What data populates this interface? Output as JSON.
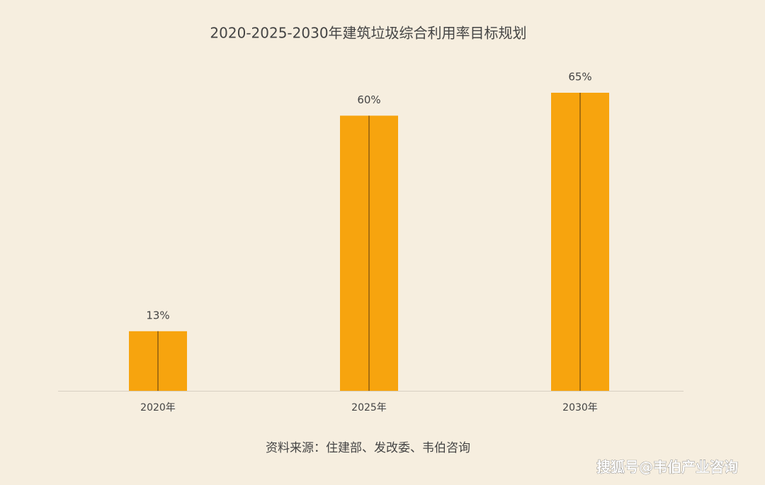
{
  "chart_data": {
    "type": "bar",
    "title": "2020-2025-2030年建筑垃圾综合利用率目标规划",
    "categories": [
      "2020年",
      "2025年",
      "2030年"
    ],
    "values": [
      13,
      60,
      65
    ],
    "value_labels": [
      "13%",
      "60%",
      "65%"
    ],
    "color": "#f7a40e",
    "ylim": [
      0,
      70
    ],
    "grid": false,
    "source": "资料来源：住建部、发改委、韦伯咨询",
    "watermark": "搜狐号@韦伯产业咨询"
  }
}
